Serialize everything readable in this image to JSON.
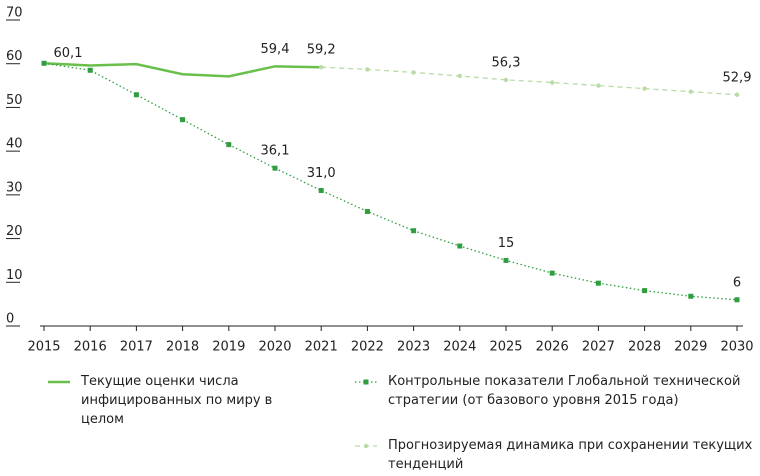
{
  "chart_data": {
    "type": "line",
    "x": [
      2015,
      2016,
      2017,
      2018,
      2019,
      2020,
      2021,
      2022,
      2023,
      2024,
      2025,
      2026,
      2027,
      2028,
      2029,
      2030
    ],
    "xlim": [
      2015,
      2030
    ],
    "xticks": [
      2015,
      2016,
      2017,
      2018,
      2019,
      2020,
      2021,
      2022,
      2023,
      2024,
      2025,
      2026,
      2027,
      2028,
      2029,
      2030
    ],
    "ylim": [
      0,
      70
    ],
    "yticks": [
      0,
      10,
      20,
      30,
      40,
      50,
      60,
      70
    ],
    "series": [
      {
        "name": "Текущие оценки числа инфицированных по миру в целом",
        "color": "#6abf4b",
        "style": "solid",
        "values": [
          60.1,
          59.6,
          59.9,
          57.6,
          57.1,
          59.4,
          59.2,
          null,
          null,
          null,
          null,
          null,
          null,
          null,
          null,
          null
        ],
        "value_labels": [
          "60,1",
          null,
          null,
          null,
          null,
          "59,4",
          "59,2",
          null,
          null,
          null,
          null,
          null,
          null,
          null,
          null,
          null
        ]
      },
      {
        "name": "Контрольные показатели Глобальной технической стратегии (от базового уровня 2015 года)",
        "color": "#2e9e3f",
        "style": "dotted",
        "marker": "square",
        "values": [
          60.1,
          58.5,
          52.9,
          47.2,
          41.5,
          36.1,
          31.0,
          26.2,
          21.8,
          18.3,
          15,
          12.1,
          9.8,
          8.1,
          6.8,
          6
        ],
        "value_labels": [
          null,
          null,
          null,
          null,
          null,
          "36,1",
          "31,0",
          null,
          null,
          null,
          "15",
          null,
          null,
          null,
          null,
          "6"
        ]
      },
      {
        "name": "Прогнозируемая динамика при сохранении текущих тенденций",
        "color": "#b9dca6",
        "style": "dashed",
        "marker": "circle",
        "values": [
          null,
          null,
          null,
          null,
          null,
          null,
          59.2,
          58.7,
          58.0,
          57.2,
          56.3,
          55.7,
          55.0,
          54.3,
          53.6,
          52.9
        ],
        "value_labels": [
          null,
          null,
          null,
          null,
          null,
          null,
          null,
          null,
          null,
          null,
          "56,3",
          null,
          null,
          null,
          null,
          "52,9"
        ]
      }
    ]
  }
}
